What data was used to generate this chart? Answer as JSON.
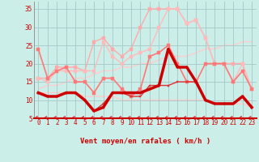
{
  "xlabel": "Vent moyen/en rafales ( km/h )",
  "bg_color": "#cceee8",
  "grid_color": "#aacccc",
  "x_ticks": [
    0,
    1,
    2,
    3,
    4,
    5,
    6,
    7,
    8,
    9,
    10,
    11,
    12,
    13,
    14,
    15,
    16,
    17,
    18,
    19,
    20,
    21,
    22,
    23
  ],
  "ylim": [
    5,
    37
  ],
  "yticks": [
    5,
    10,
    15,
    20,
    25,
    30,
    35
  ],
  "series": [
    {
      "label": "dark_red_thick",
      "data": [
        12,
        11,
        11,
        12,
        12,
        10,
        7,
        8,
        12,
        12,
        12,
        12,
        13,
        14,
        24,
        19,
        19,
        15,
        10,
        9,
        9,
        9,
        11,
        8
      ],
      "color": "#cc0000",
      "lw": 2.5,
      "marker": null,
      "ms": 0,
      "zorder": 6
    },
    {
      "label": "dark_red_markers",
      "data": [
        12,
        11,
        11,
        12,
        12,
        10,
        7,
        8,
        12,
        12,
        12,
        12,
        13,
        14,
        24,
        19,
        19,
        15,
        10,
        9,
        9,
        9,
        11,
        8
      ],
      "color": "#cc0000",
      "lw": 1.0,
      "marker": "s",
      "ms": 2.0,
      "zorder": 7
    },
    {
      "label": "medium_red_1",
      "data": [
        12,
        11,
        11,
        12,
        12,
        10,
        7,
        9,
        12,
        12,
        11,
        11,
        14,
        14,
        14,
        15,
        15,
        15,
        10,
        9,
        9,
        9,
        11,
        8
      ],
      "color": "#dd3333",
      "lw": 1.0,
      "marker": "s",
      "ms": 2.0,
      "zorder": 5
    },
    {
      "label": "pink_dark_markers",
      "data": [
        24,
        16,
        18,
        19,
        15,
        15,
        12,
        16,
        16,
        13,
        11,
        13,
        22,
        23,
        25,
        20,
        15,
        15,
        20,
        20,
        20,
        15,
        18,
        13
      ],
      "color": "#ff7777",
      "lw": 1.2,
      "marker": "s",
      "ms": 2.5,
      "zorder": 4
    },
    {
      "label": "pink_light_upper1",
      "data": [
        16,
        16,
        19,
        19,
        19,
        18,
        26,
        27,
        24,
        22,
        24,
        30,
        35,
        35,
        35,
        35,
        31,
        32,
        27,
        20,
        20,
        20,
        20,
        13
      ],
      "color": "#ffaaaa",
      "lw": 1.0,
      "marker": "s",
      "ms": 2.5,
      "zorder": 2
    },
    {
      "label": "pink_light_upper2",
      "data": [
        16,
        15,
        18,
        18,
        18,
        18,
        18,
        26,
        22,
        20,
        22,
        23,
        24,
        30,
        35,
        35,
        31,
        32,
        27,
        20,
        20,
        15,
        20,
        13
      ],
      "color": "#ffbbbb",
      "lw": 1.0,
      "marker": "s",
      "ms": 2.5,
      "zorder": 2
    },
    {
      "label": "pink_trend_upper",
      "data": [
        13,
        14,
        14,
        15,
        16,
        16,
        17,
        18,
        18,
        19,
        19,
        20,
        20,
        21,
        22,
        22,
        22,
        23,
        24,
        24,
        25,
        25,
        26,
        26
      ],
      "color": "#ffcccc",
      "lw": 1.0,
      "marker": null,
      "ms": 0,
      "zorder": 1
    },
    {
      "label": "pink_trend_lower",
      "data": [
        12,
        12,
        12,
        12,
        12,
        11,
        11,
        11,
        11,
        10,
        10,
        10,
        10,
        10,
        10,
        10,
        10,
        10,
        10,
        9,
        9,
        9,
        9,
        8
      ],
      "color": "#ffcccc",
      "lw": 1.0,
      "marker": null,
      "ms": 0,
      "zorder": 1
    }
  ],
  "arrow_color": "#dd4444",
  "label_fontsize": 6.5,
  "tick_fontsize": 5.5,
  "tick_color": "#cc0000",
  "xlabel_color": "#cc0000",
  "spine_color": "#cc0000",
  "left_spine_color": "#888888"
}
